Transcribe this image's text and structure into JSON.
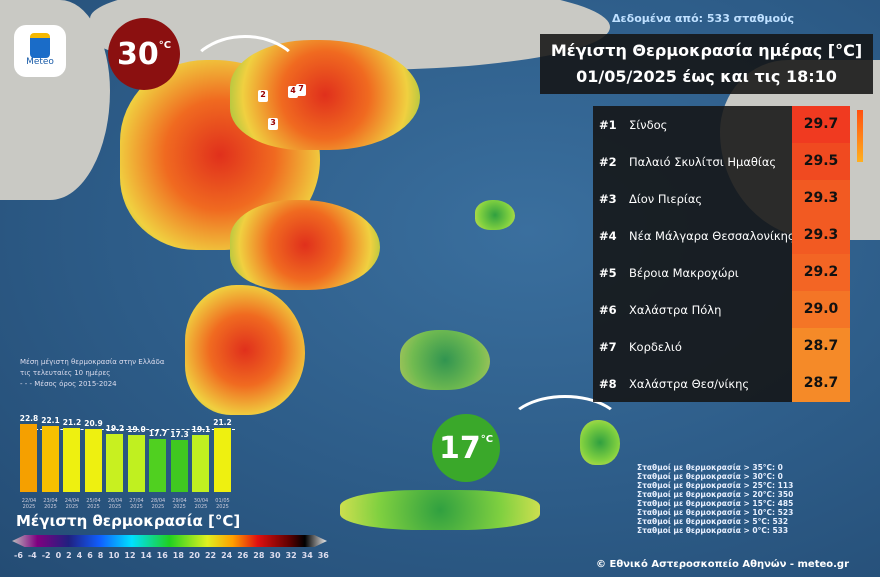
{
  "header": {
    "stations_note": "Δεδομένα από: 533 σταθμούς",
    "title_line1": "Μέγιστη Θερμοκρασία ημέρας [°C]",
    "title_line2": "01/05/2025 έως και τις 18:10"
  },
  "logo": {
    "text": "Meteo"
  },
  "badges": {
    "max": {
      "value": "30",
      "unit": "°C",
      "color": "#8b1010"
    },
    "min": {
      "value": "17",
      "unit": "°C",
      "color": "#3aa82a"
    }
  },
  "map_markers": [
    "1",
    "2",
    "3",
    "4",
    "5",
    "6",
    "7"
  ],
  "ranking": [
    {
      "rank": "#1",
      "name": "Σίνδος",
      "value": "29.7",
      "color": "#f03a20"
    },
    {
      "rank": "#2",
      "name": "Παλαιό Σκυλίτσι Ημαθίας",
      "value": "29.5",
      "color": "#f04a20"
    },
    {
      "rank": "#3",
      "name": "Δίον Πιερίας",
      "value": "29.3",
      "color": "#f25a22"
    },
    {
      "rank": "#4",
      "name": "Νέα Μάλγαρα Θεσσαλονίκης",
      "value": "29.3",
      "color": "#f25a22"
    },
    {
      "rank": "#5",
      "name": "Βέροια Μακροχώρι",
      "value": "29.2",
      "color": "#f36524"
    },
    {
      "rank": "#6",
      "name": "Χαλάστρα Πόλη",
      "value": "29.0",
      "color": "#f47526"
    },
    {
      "rank": "#7",
      "name": "Κορδελιό",
      "value": "28.7",
      "color": "#f58a28"
    },
    {
      "rank": "#8",
      "name": "Χαλάστρα Θεσ/νίκης",
      "value": "28.7",
      "color": "#f58a28"
    }
  ],
  "mini_chart": {
    "title_line1": "Μέση μέγιστη θερμοκρασία στην Ελλάδα",
    "title_line2": "τις τελευταίες 10 ημέρες",
    "legend": "Μέσος όρος 2015-2024",
    "chart_data": {
      "type": "bar",
      "categories": [
        "22/04 2025",
        "23/04 2025",
        "24/04 2025",
        "25/04 2025",
        "26/04 2025",
        "27/04 2025",
        "28/04 2025",
        "29/04 2025",
        "30/04 2025",
        "01/05 2025"
      ],
      "values": [
        22.8,
        22.1,
        21.2,
        20.9,
        19.2,
        19.0,
        17.7,
        17.3,
        19.1,
        21.2
      ],
      "labels": [
        "22.8",
        "22.1",
        "21.2",
        "20.9",
        "19.2",
        "19.0",
        "17.7",
        "17.3",
        "19.1",
        "21.2"
      ],
      "colors": [
        "#f5a000",
        "#f7c000",
        "#eef010",
        "#eef010",
        "#c8f020",
        "#c0f020",
        "#50d020",
        "#40c820",
        "#c0f020",
        "#eef010"
      ],
      "average": 20.6,
      "ylim": [
        0,
        24
      ]
    }
  },
  "legend": {
    "title": "Μέγιστη θερμοκρασία [°C]",
    "ticks": [
      "-6",
      "-4",
      "-2",
      "0",
      "2",
      "4",
      "6",
      "8",
      "10",
      "12",
      "14",
      "16",
      "18",
      "20",
      "22",
      "24",
      "26",
      "28",
      "30",
      "32",
      "34",
      "36"
    ]
  },
  "stats": [
    "Σταθμοί με θερμοκρασία > 35°C: 0",
    "Σταθμοί με θερμοκρασία > 30°C: 0",
    "Σταθμοί με θερμοκρασία > 25°C: 113",
    "Σταθμοί με θερμοκρασία > 20°C: 350",
    "Σταθμοί με θερμοκρασία > 15°C: 485",
    "Σταθμοί με θερμοκρασία > 10°C: 523",
    "Σταθμοί με θερμοκρασία > 5°C: 532",
    "Σταθμοί με θερμοκρασία > 0°C: 533"
  ],
  "credit": "© Εθνικό Αστεροσκοπείο Αθηνών - meteo.gr"
}
